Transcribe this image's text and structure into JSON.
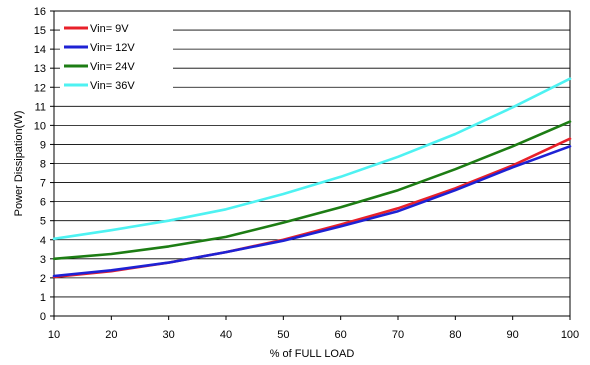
{
  "chart_data": {
    "type": "line",
    "title": "",
    "xlabel": "% of FULL LOAD",
    "ylabel": "Power Dissipation(W)",
    "x": [
      10,
      20,
      30,
      40,
      50,
      60,
      70,
      80,
      90,
      100
    ],
    "xlim": [
      10,
      100
    ],
    "ylim": [
      0,
      16
    ],
    "xticks": [
      "10",
      "20",
      "30",
      "40",
      "50",
      "60",
      "70",
      "80",
      "90",
      "100"
    ],
    "yticks": [
      "0",
      "1",
      "2",
      "3",
      "4",
      "5",
      "6",
      "7",
      "8",
      "9",
      "10",
      "11",
      "12",
      "13",
      "14",
      "15",
      "16"
    ],
    "grid": "horizontal",
    "legend": "top-left",
    "series": [
      {
        "name": "Vin= 9V",
        "color": "#e8202a",
        "values": [
          2.05,
          2.35,
          2.8,
          3.35,
          4.0,
          4.8,
          5.65,
          6.7,
          7.9,
          9.3
        ]
      },
      {
        "name": "Vin= 12V",
        "color": "#1e22d4",
        "values": [
          2.1,
          2.4,
          2.8,
          3.35,
          3.95,
          4.7,
          5.5,
          6.6,
          7.8,
          8.9
        ]
      },
      {
        "name": "Vin= 24V",
        "color": "#1d7d14",
        "values": [
          3.0,
          3.25,
          3.65,
          4.15,
          4.9,
          5.7,
          6.6,
          7.7,
          8.9,
          10.2
        ]
      },
      {
        "name": "Vin= 36V",
        "color": "#4ef2f2",
        "values": [
          4.05,
          4.5,
          5.0,
          5.6,
          6.4,
          7.3,
          8.35,
          9.55,
          10.95,
          12.45
        ]
      }
    ]
  }
}
